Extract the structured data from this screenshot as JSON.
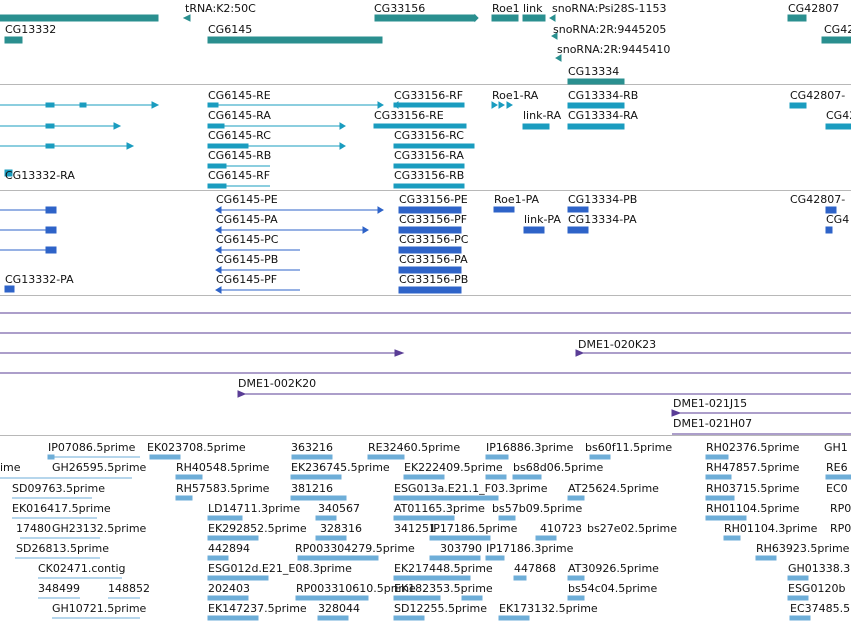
{
  "tracks": {
    "genes": {
      "colors": {
        "feature": "#2a8f8f",
        "arrow": "#2a8f8f"
      },
      "labels": [
        "tRNA:K2:50C",
        "CG33156",
        "Roe1",
        "link",
        "snoRNA:Psi28S-1153",
        "CG42807",
        "CG13332",
        "CG6145",
        "snoRNA:2R:9445205",
        "snoRNA:2R:9445410",
        "CG13334",
        "CG42"
      ]
    },
    "transcripts_r": {
      "colors": {
        "feature": "#1a9cbf"
      },
      "labels": [
        "CG6145-RE",
        "CG33156-RF",
        "Roe1-RA",
        "CG13334-RB",
        "CG42807-",
        "CG6145-RA",
        "CG33156-RE",
        "link-RA",
        "CG13334-RA",
        "CG42",
        "CG6145-RC",
        "CG33156-RC",
        "CG6145-RB",
        "CG33156-RA",
        "CG13332-RA",
        "CG6145-RF",
        "CG33156-RB"
      ]
    },
    "transcripts_p": {
      "colors": {
        "feature": "#2e63c8"
      },
      "labels": [
        "CG6145-PE",
        "CG33156-PE",
        "Roe1-PA",
        "CG13334-PB",
        "CG42807-",
        "CG6145-PA",
        "CG33156-PF",
        "link-PA",
        "CG13334-PA",
        "CG4",
        "CG6145-PC",
        "CG33156-PC",
        "CG6145-PB",
        "CG33156-PA",
        "CG13332-PA",
        "CG6145-PF",
        "CG33156-PB"
      ]
    },
    "bacs": {
      "colors": {
        "line": "#5a3d96"
      },
      "labels": [
        "DME1-020K23",
        "DME1-002K20",
        "DME1-021J15",
        "DME1-021H07"
      ]
    },
    "ests": {
      "colors": {
        "feature": "#6eaed8"
      },
      "labels": [
        "IP07086.5prime",
        "EK023708.5prime",
        "363216",
        "RE32460.5prime",
        "IP16886.3prime",
        "bs60f11.5prime",
        "RH02376.5prime",
        "GH1",
        "ime",
        "GH26595.5prime",
        "RH40548.5prime",
        "EK236745.5prime",
        "EK222409.5prime",
        "bs68d06.5prime",
        "RH47857.5prime",
        "RE6",
        "SD09763.5prime",
        "RH57583.5prime",
        "381216",
        "ESG013a.E21.1_F03.3prime",
        "AT25624.5prime",
        "RH03715.5prime",
        "EC0",
        "EK016417.5prime",
        "LD14711.3prime",
        "340567",
        "AT01165.3prime",
        "bs57b09.5prime",
        "RH01104.5prime",
        "RP0",
        "17480",
        "GH23132.5prime",
        "EK292852.5prime",
        "328316",
        "341251",
        "IP17186.5prime",
        "410723",
        "bs27e02.5prime",
        "RH01104.3prime",
        "RP0",
        "SD26813.5prime",
        "442894",
        "RP003304279.5prime",
        "303790",
        "IP17186.3prime",
        "RH63923.5prime",
        "CK02471.contig",
        "ESG012d.E21_E08.3prime",
        "EK217448.5prime",
        "447868",
        "AT30926.5prime",
        "GH01338.3",
        "348499",
        "148852",
        "202403",
        "RP003310610.5prime",
        "EK182353.5prime",
        "bs54c04.5prime",
        "ESG0120b",
        "GH10721.5prime",
        "EK147237.5prime",
        "328044",
        "SD12255.5prime",
        "EK173132.5prime",
        "EC37485.5"
      ]
    }
  }
}
